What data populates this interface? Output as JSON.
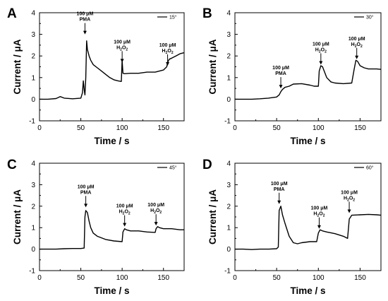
{
  "chart_data": [
    {
      "panel": "A",
      "type": "line",
      "xlabel": "Time / s",
      "ylabel": "Current / μA",
      "xlim": [
        0,
        175
      ],
      "ylim": [
        -1,
        4
      ],
      "xticks": [
        0,
        50,
        100,
        150
      ],
      "yticks": [
        -1,
        0,
        1,
        2,
        3,
        4
      ],
      "series": [
        {
          "name": "15°",
          "x": [
            0,
            10,
            20,
            25,
            30,
            40,
            50,
            52,
            53,
            54,
            55,
            56,
            57,
            58,
            60,
            62,
            65,
            70,
            75,
            80,
            85,
            90,
            95,
            99,
            100,
            101,
            103,
            110,
            120,
            130,
            140,
            150,
            154,
            155,
            157,
            160,
            165,
            170,
            175
          ],
          "y": [
            0.0,
            0.0,
            0.03,
            0.12,
            0.05,
            0.02,
            0.05,
            0.3,
            0.85,
            0.45,
            0.2,
            1.0,
            2.7,
            2.3,
            2.0,
            1.8,
            1.6,
            1.45,
            1.3,
            1.15,
            1.0,
            0.9,
            0.85,
            0.82,
            1.8,
            1.2,
            1.18,
            1.2,
            1.2,
            1.25,
            1.25,
            1.35,
            1.5,
            1.7,
            1.85,
            1.9,
            2.0,
            2.1,
            2.15
          ]
        }
      ],
      "annotations": [
        {
          "line1": "100 μM",
          "line2": "PMA",
          "x": 55,
          "y_tip": 3.0
        },
        {
          "line1": "100 μM",
          "line2": "H",
          "sub": "2",
          "line2b": "O",
          "sub2": "2",
          "x": 100,
          "y_tip": 1.7
        },
        {
          "line1": "100 μM",
          "line2": "H",
          "sub": "2",
          "line2b": "O",
          "sub2": "2",
          "x": 155,
          "y_tip": 1.55
        }
      ]
    },
    {
      "panel": "B",
      "type": "line",
      "xlabel": "Time / s",
      "ylabel": "Current / μA",
      "xlim": [
        0,
        175
      ],
      "ylim": [
        -1,
        4
      ],
      "xticks": [
        0,
        50,
        100,
        150
      ],
      "yticks": [
        -1,
        0,
        1,
        2,
        3,
        4
      ],
      "series": [
        {
          "name": "30°",
          "x": [
            0,
            10,
            20,
            30,
            40,
            50,
            53,
            55,
            57,
            60,
            65,
            70,
            80,
            90,
            95,
            100,
            101,
            103,
            105,
            110,
            115,
            120,
            130,
            140,
            143,
            145,
            147,
            150,
            155,
            160,
            170,
            175
          ],
          "y": [
            0.0,
            0.0,
            0.0,
            0.02,
            0.05,
            0.1,
            0.2,
            0.35,
            0.45,
            0.55,
            0.6,
            0.7,
            0.72,
            0.65,
            0.6,
            0.6,
            1.3,
            1.55,
            1.5,
            1.0,
            0.8,
            0.75,
            0.72,
            0.75,
            1.4,
            1.8,
            1.75,
            1.55,
            1.45,
            1.4,
            1.4,
            1.38
          ]
        }
      ],
      "annotations": [
        {
          "line1": "100 μM",
          "line2": "PMA",
          "x": 55,
          "y_tip": 0.5
        },
        {
          "line1": "100 μM",
          "line2": "H",
          "sub": "2",
          "line2b": "O",
          "sub2": "2",
          "x": 103,
          "y_tip": 1.6
        },
        {
          "line1": "100 μM",
          "line2": "H",
          "sub": "2",
          "line2b": "O",
          "sub2": "2",
          "x": 146,
          "y_tip": 1.85
        }
      ]
    },
    {
      "panel": "C",
      "type": "line",
      "xlabel": "Time / s",
      "ylabel": "Current / μA",
      "xlim": [
        0,
        175
      ],
      "ylim": [
        -1,
        4
      ],
      "xticks": [
        0,
        50,
        100,
        150
      ],
      "yticks": [
        -1,
        0,
        1,
        2,
        3,
        4
      ],
      "series": [
        {
          "name": "45°",
          "x": [
            0,
            10,
            20,
            30,
            40,
            50,
            54,
            55,
            56,
            58,
            60,
            62,
            65,
            70,
            80,
            90,
            100,
            101,
            103,
            105,
            110,
            120,
            130,
            140,
            141,
            143,
            145,
            150,
            160,
            170,
            175
          ],
          "y": [
            0.0,
            0.0,
            0.0,
            0.02,
            0.03,
            0.03,
            0.05,
            1.5,
            1.8,
            1.7,
            1.3,
            1.0,
            0.75,
            0.6,
            0.45,
            0.38,
            0.35,
            0.8,
            0.95,
            0.9,
            0.85,
            0.85,
            0.8,
            0.78,
            0.95,
            1.05,
            1.0,
            0.95,
            0.95,
            0.9,
            0.9
          ]
        }
      ],
      "annotations": [
        {
          "line1": "100 μM",
          "line2": "PMA",
          "x": 56,
          "y_tip": 1.95
        },
        {
          "line1": "100 μM",
          "line2": "H",
          "sub": "2",
          "line2b": "O",
          "sub2": "2",
          "x": 103,
          "y_tip": 1.05
        },
        {
          "line1": "100 μM",
          "line2": "H",
          "sub": "2",
          "line2b": "O",
          "sub2": "2",
          "x": 141,
          "y_tip": 1.1
        }
      ]
    },
    {
      "panel": "D",
      "type": "line",
      "xlabel": "Time / s",
      "ylabel": "Current / μA",
      "xlim": [
        0,
        175
      ],
      "ylim": [
        -1,
        4
      ],
      "xticks": [
        0,
        50,
        100,
        150
      ],
      "yticks": [
        -1,
        0,
        1,
        2,
        3,
        4
      ],
      "series": [
        {
          "name": "60°",
          "x": [
            0,
            10,
            20,
            30,
            40,
            50,
            52,
            53,
            55,
            57,
            60,
            65,
            70,
            75,
            80,
            90,
            98,
            100,
            102,
            105,
            110,
            120,
            130,
            135,
            137,
            140,
            150,
            160,
            170,
            175
          ],
          "y": [
            0.0,
            0.0,
            -0.02,
            0.0,
            0.0,
            0.02,
            0.1,
            1.8,
            2.0,
            1.6,
            1.2,
            0.6,
            0.3,
            0.25,
            0.3,
            0.35,
            0.35,
            0.75,
            0.9,
            0.85,
            0.8,
            0.72,
            0.6,
            0.5,
            1.4,
            1.58,
            1.6,
            1.62,
            1.6,
            1.58
          ]
        }
      ],
      "annotations": [
        {
          "line1": "100 μM",
          "line2": "PMA",
          "x": 53,
          "y_tip": 2.1
        },
        {
          "line1": "100 μM",
          "line2": "H",
          "sub": "2",
          "line2b": "O",
          "sub2": "2",
          "x": 101,
          "y_tip": 0.95
        },
        {
          "line1": "100 μM",
          "line2": "H",
          "sub": "2",
          "line2b": "O",
          "sub2": "2",
          "x": 137,
          "y_tip": 1.68
        }
      ]
    }
  ]
}
